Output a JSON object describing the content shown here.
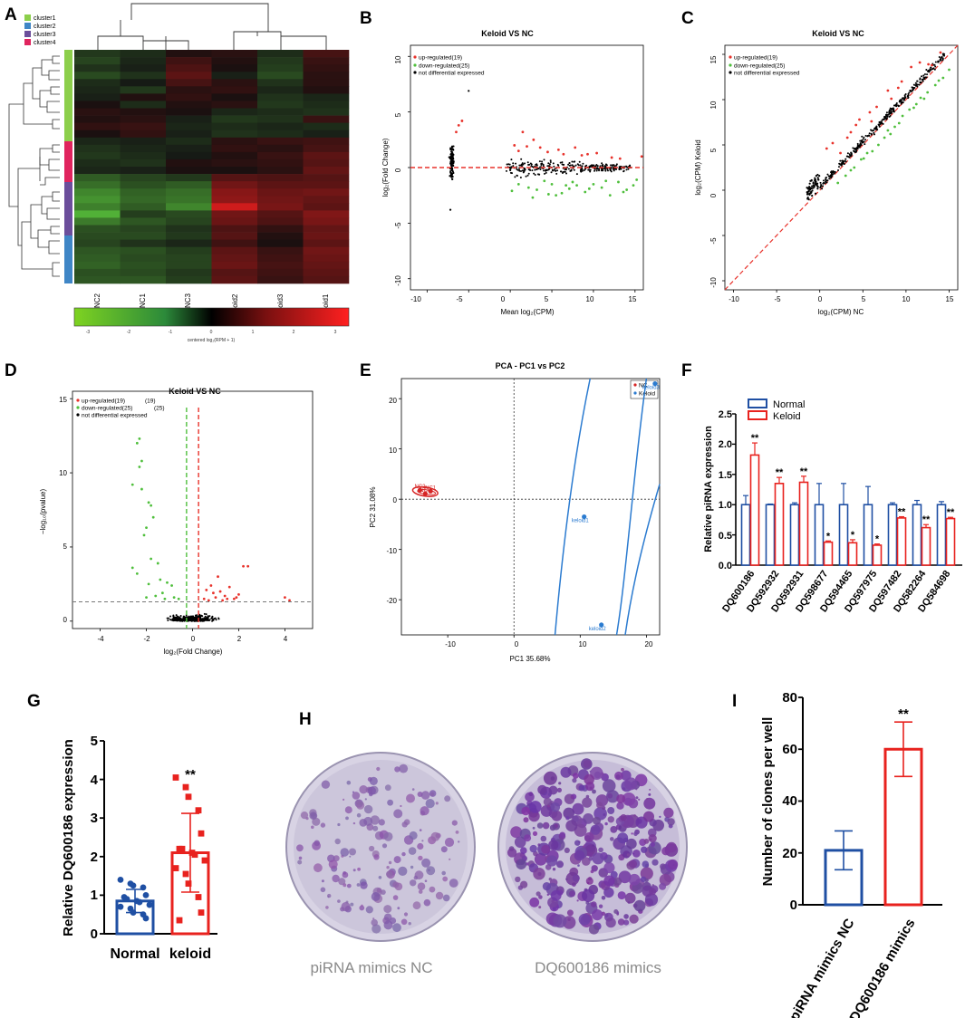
{
  "colors": {
    "up": "#e8322b",
    "down": "#4fbf3c",
    "nodiff": "#000000",
    "normal": "#1f4fa3",
    "keloid": "#e8221e",
    "clusters": [
      "#8ccf4b",
      "#3f86c6",
      "#6b4e9b",
      "#e0245e"
    ],
    "pca_nc": "#d62424",
    "pca_keloid": "#2b7bd0",
    "dish": "#c9c2da",
    "colony": "#7a4fa6"
  },
  "panels": {
    "A": "A",
    "B": "B",
    "C": "C",
    "D": "D",
    "E": "E",
    "F": "F",
    "G": "G",
    "H": "H",
    "I": "I"
  },
  "heatmap": {
    "columns": [
      "NC2",
      "NC1",
      "NC3",
      "keloid2",
      "keloid3",
      "keloid1"
    ],
    "legend": [
      "cluster1",
      "cluster2",
      "cluster3",
      "cluster4"
    ],
    "colorbar_label": "centered log₂(RPM + 1)",
    "colorbar_ticks": [
      "-3",
      "-2",
      "-1",
      "0",
      "1",
      "2",
      "3"
    ]
  },
  "chart_data": [
    {
      "panel": "B",
      "type": "scatter",
      "title": "Keloid VS NC",
      "xlabel": "Mean log₂(CPM)",
      "ylabel": "log₂(Fold Change)",
      "xlim": [
        -12,
        16
      ],
      "ylim": [
        -11,
        11
      ],
      "xticks": [
        "-10",
        "-5",
        "0",
        "5",
        "10",
        "15"
      ],
      "yticks": [
        "10",
        "5",
        "0",
        "-5",
        "-10"
      ],
      "legend": [
        "up-regulated(19)",
        "down-regulated(25)",
        "not differential expressed"
      ],
      "hline": 0,
      "up": [
        [
          -6.2,
          3.8
        ],
        [
          -5.8,
          4.2
        ],
        [
          -6.5,
          3.2
        ],
        [
          1.5,
          3.2
        ],
        [
          2.8,
          2.5
        ],
        [
          0.5,
          2.0
        ],
        [
          3.6,
          1.8
        ],
        [
          4.5,
          1.4
        ],
        [
          5.8,
          1.6
        ],
        [
          6.4,
          1.2
        ],
        [
          7.8,
          1.8
        ],
        [
          9.3,
          1.2
        ],
        [
          10.4,
          1.3
        ],
        [
          12.2,
          0.9
        ],
        [
          13.2,
          0.8
        ],
        [
          15.8,
          1.0
        ],
        [
          8.6,
          1.1
        ],
        [
          1.0,
          1.5
        ],
        [
          2.0,
          1.9
        ]
      ],
      "down": [
        [
          1.0,
          -1.5
        ],
        [
          2.2,
          -1.8
        ],
        [
          3.2,
          -2.0
        ],
        [
          4.1,
          -1.2
        ],
        [
          5.0,
          -1.5
        ],
        [
          6.2,
          -2.3
        ],
        [
          7.1,
          -1.9
        ],
        [
          8.0,
          -1.6
        ],
        [
          9.0,
          -2.2
        ],
        [
          10.0,
          -1.5
        ],
        [
          11.0,
          -1.8
        ],
        [
          12.0,
          -2.5
        ],
        [
          13.0,
          -1.3
        ],
        [
          14.0,
          -2.0
        ],
        [
          14.8,
          -1.6
        ],
        [
          0.2,
          -2.1
        ],
        [
          2.7,
          -2.7
        ],
        [
          5.5,
          -2.5
        ],
        [
          7.5,
          -1.3
        ],
        [
          9.5,
          -1.9
        ],
        [
          11.5,
          -1.2
        ],
        [
          13.6,
          -2.2
        ],
        [
          4.6,
          -2.4
        ],
        [
          6.7,
          -1.6
        ],
        [
          15.2,
          -1.1
        ]
      ],
      "extra_points": [
        [
          -5.0,
          6.9
        ],
        [
          -7.2,
          -3.8
        ]
      ]
    },
    {
      "panel": "C",
      "type": "scatter",
      "title": "Keloid VS NC",
      "xlabel": "log₂(CPM) NC",
      "ylabel": "log₂(CPM) Keloid",
      "xlim": [
        -11,
        16
      ],
      "ylim": [
        -11,
        16
      ],
      "xticks": [
        "-10",
        "-5",
        "0",
        "5",
        "10",
        "15"
      ],
      "yticks": [
        "15",
        "10",
        "5",
        "0",
        "-5",
        "-10"
      ],
      "legend": [
        "up-regulated(19)",
        "down-regulated(25)",
        "not differential expressed"
      ],
      "diagonal": true,
      "up": [
        [
          0.8,
          4.6
        ],
        [
          1.5,
          5.2
        ],
        [
          3.2,
          5.8
        ],
        [
          4.2,
          7.2
        ],
        [
          5.8,
          8.6
        ],
        [
          6.6,
          9.2
        ],
        [
          7.9,
          11.0
        ],
        [
          9.5,
          12.0
        ],
        [
          10.6,
          13.6
        ],
        [
          11.6,
          14.1
        ],
        [
          13.0,
          13.8
        ],
        [
          2.4,
          4.1
        ],
        [
          4.6,
          7.8
        ],
        [
          6.0,
          7.6
        ],
        [
          8.3,
          10.1
        ],
        [
          9.1,
          11.3
        ],
        [
          12.6,
          13.9
        ],
        [
          14.0,
          15.2
        ],
        [
          3.6,
          6.4
        ]
      ],
      "down": [
        [
          3.0,
          1.6
        ],
        [
          4.8,
          3.4
        ],
        [
          5.5,
          4.1
        ],
        [
          6.8,
          5.0
        ],
        [
          7.5,
          5.8
        ],
        [
          8.7,
          7.0
        ],
        [
          9.6,
          8.2
        ],
        [
          10.4,
          8.9
        ],
        [
          11.2,
          9.5
        ],
        [
          12.5,
          10.8
        ],
        [
          13.4,
          11.6
        ],
        [
          14.3,
          12.4
        ],
        [
          2.1,
          0.8
        ],
        [
          4.0,
          2.5
        ],
        [
          6.1,
          4.3
        ],
        [
          7.9,
          6.6
        ],
        [
          9.2,
          7.4
        ],
        [
          11.7,
          10.2
        ],
        [
          13.8,
          12.1
        ],
        [
          15.0,
          13.3
        ],
        [
          5.1,
          3.5
        ],
        [
          8.2,
          6.2
        ],
        [
          10.9,
          9.1
        ],
        [
          12.1,
          10.1
        ],
        [
          3.6,
          2.2
        ]
      ]
    },
    {
      "panel": "D",
      "type": "scatter",
      "title": "Keloid VS NC",
      "xlabel": "log₂(Fold Change)",
      "ylabel": "−log₁₀(pvalue)",
      "xlim": [
        -5.2,
        5.2
      ],
      "ylim": [
        -0.5,
        15.5
      ],
      "xticks": [
        "-4",
        "-2",
        "0",
        "2",
        "4"
      ],
      "yticks": [
        "15",
        "10",
        "5",
        "0"
      ],
      "legend": [
        "up-regulated(19)",
        "down-regulated(25)",
        "not differential expressed"
      ],
      "legend_counts": [
        "(19)",
        "(25)"
      ],
      "vlines": [
        -0.26,
        0.26
      ],
      "hline": 1.3,
      "up": [
        [
          0.5,
          1.5
        ],
        [
          0.8,
          2.4
        ],
        [
          0.9,
          1.9
        ],
        [
          1.1,
          3.0
        ],
        [
          1.2,
          2.0
        ],
        [
          1.4,
          1.7
        ],
        [
          1.6,
          2.3
        ],
        [
          1.9,
          1.6
        ],
        [
          2.2,
          3.7
        ],
        [
          2.4,
          3.7
        ],
        [
          0.7,
          1.4
        ],
        [
          1.0,
          1.6
        ],
        [
          1.3,
          1.4
        ],
        [
          1.8,
          1.5
        ],
        [
          2.0,
          1.8
        ],
        [
          4.0,
          1.6
        ],
        [
          4.2,
          1.4
        ],
        [
          0.6,
          2.1
        ],
        [
          1.5,
          1.5
        ]
      ],
      "down": [
        [
          -2.3,
          12.3
        ],
        [
          -2.4,
          12.0
        ],
        [
          -2.2,
          10.8
        ],
        [
          -2.3,
          10.4
        ],
        [
          -2.6,
          9.2
        ],
        [
          -2.2,
          8.9
        ],
        [
          -1.9,
          8.0
        ],
        [
          -1.8,
          7.8
        ],
        [
          -1.7,
          7.0
        ],
        [
          -2.0,
          6.3
        ],
        [
          -2.1,
          5.8
        ],
        [
          -1.8,
          4.2
        ],
        [
          -1.5,
          3.9
        ],
        [
          -2.6,
          3.6
        ],
        [
          -2.4,
          3.2
        ],
        [
          -1.4,
          2.8
        ],
        [
          -1.9,
          2.5
        ],
        [
          -1.1,
          2.6
        ],
        [
          -0.9,
          2.4
        ],
        [
          -1.6,
          1.7
        ],
        [
          -2.0,
          1.6
        ],
        [
          -1.2,
          1.5
        ],
        [
          -0.8,
          1.6
        ],
        [
          -0.6,
          1.5
        ],
        [
          -1.3,
          1.9
        ]
      ]
    },
    {
      "panel": "E",
      "type": "scatter",
      "title": "PCA - PC1 vs PC2",
      "xlabel": "PC1 35.68%",
      "ylabel": "PC2 31.08%",
      "xlim": [
        -17,
        22
      ],
      "ylim": [
        -27,
        24
      ],
      "xticks": [
        "-10",
        "0",
        "10",
        "20"
      ],
      "yticks": [
        "20",
        "10",
        "0",
        "-10",
        "-20"
      ],
      "legend": [
        "NC",
        "Keloid"
      ],
      "groups": [
        {
          "name": "NC",
          "points": [
            {
              "label": "NC2",
              "x": -14.2,
              "y": 1.8
            },
            {
              "label": "NC1",
              "x": -12.6,
              "y": 1.6
            },
            {
              "label": "NC3",
              "x": -13.4,
              "y": 1.1
            }
          ]
        },
        {
          "name": "Keloid",
          "points": [
            {
              "label": "keloid1",
              "x": 10.6,
              "y": -3.5
            },
            {
              "label": "keloid2",
              "x": 13.2,
              "y": -25.0
            },
            {
              "label": "keloid3",
              "x": 21.3,
              "y": 23.0
            }
          ]
        }
      ]
    },
    {
      "panel": "F",
      "type": "bar",
      "ylabel": "Relative piRNA expression",
      "ylim": [
        0,
        2.5
      ],
      "yticks": [
        "0.0",
        "0.5",
        "1.0",
        "1.5",
        "2.0",
        "2.5"
      ],
      "categories": [
        "DQ600186",
        "DQ592932",
        "DQ592931",
        "DQ598677",
        "DQ594465",
        "DQ597975",
        "DQ597482",
        "DQ582264",
        "DQ584698"
      ],
      "series": [
        {
          "name": "Normal",
          "values": [
            1.0,
            1.0,
            1.0,
            1.0,
            1.0,
            1.0,
            1.0,
            1.0,
            1.0
          ],
          "errors": [
            0.15,
            0.01,
            0.03,
            0.35,
            0.35,
            0.3,
            0.03,
            0.07,
            0.05
          ]
        },
        {
          "name": "Keloid",
          "values": [
            1.82,
            1.35,
            1.37,
            0.38,
            0.37,
            0.33,
            0.78,
            0.62,
            0.77
          ],
          "errors": [
            0.2,
            0.1,
            0.1,
            0.02,
            0.05,
            0.02,
            0.02,
            0.05,
            0.02
          ]
        }
      ],
      "significance": [
        "**",
        "**",
        "**",
        "*",
        "*",
        "*",
        "**",
        "**",
        "**"
      ]
    },
    {
      "panel": "G",
      "type": "bar",
      "ylabel": "Relative DQ600186 expression",
      "ylim": [
        0,
        5
      ],
      "yticks": [
        "0",
        "1",
        "2",
        "3",
        "4",
        "5"
      ],
      "categories": [
        "Normal",
        "keloid"
      ],
      "values": [
        0.85,
        2.1
      ],
      "errors": [
        0.3,
        1.02
      ],
      "significance": "**",
      "points_normal": [
        1.4,
        1.3,
        1.25,
        1.2,
        1.0,
        0.95,
        0.9,
        0.85,
        0.82,
        0.75,
        0.7,
        0.65,
        0.55,
        0.5,
        0.4
      ],
      "points_keloid": [
        4.05,
        3.8,
        3.55,
        3.2,
        2.6,
        2.2,
        2.2,
        2.1,
        2.05,
        1.9,
        1.7,
        1.55,
        1.3,
        0.95,
        0.55,
        0.35
      ]
    },
    {
      "panel": "I",
      "type": "bar",
      "ylabel": "Number of clones per well",
      "ylim": [
        0,
        80
      ],
      "yticks": [
        "0",
        "20",
        "40",
        "60",
        "80"
      ],
      "categories": [
        "piRNA mimics NC",
        "DQ600186 mimics"
      ],
      "values": [
        21,
        60
      ],
      "errors": [
        7.5,
        10.5
      ],
      "significance": "**"
    }
  ],
  "dishes": {
    "left_label": "piRNA mimics NC",
    "right_label": "DQ600186 mimics"
  }
}
